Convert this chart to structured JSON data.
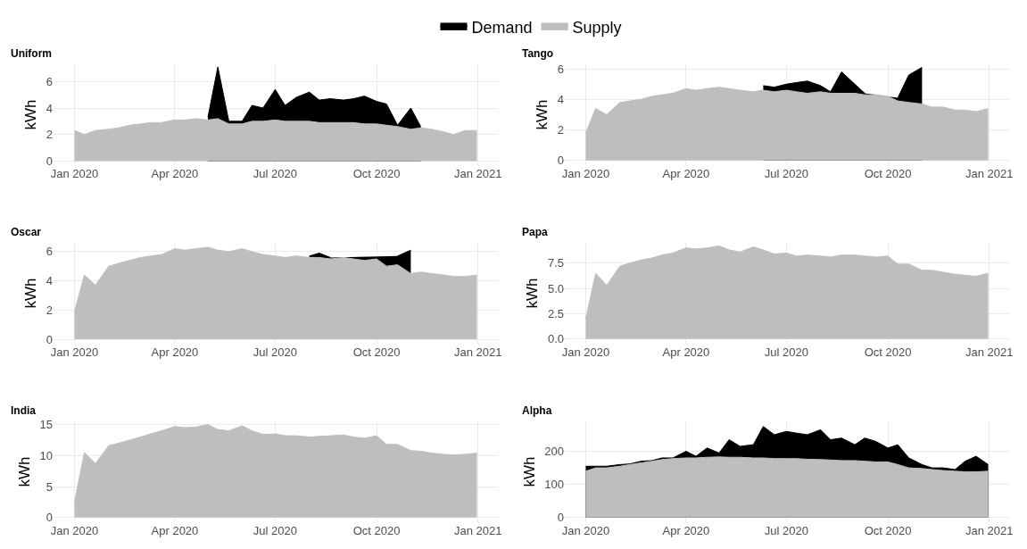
{
  "chart_data": [
    {
      "type": "area",
      "title": "Uniform",
      "ylabel": "kWh",
      "legend": "top",
      "grid": true,
      "x": [
        "2020-01-01",
        "2020-01-10",
        "2020-01-20",
        "2020-02-01",
        "2020-02-10",
        "2020-02-20",
        "2020-03-01",
        "2020-03-10",
        "2020-03-20",
        "2020-04-01",
        "2020-04-10",
        "2020-04-20",
        "2020-05-01",
        "2020-05-10",
        "2020-05-20",
        "2020-06-01",
        "2020-06-10",
        "2020-06-20",
        "2020-07-01",
        "2020-07-10",
        "2020-07-20",
        "2020-08-01",
        "2020-08-10",
        "2020-08-20",
        "2020-09-01",
        "2020-09-10",
        "2020-09-20",
        "2020-10-01",
        "2020-10-10",
        "2020-10-20",
        "2020-11-01",
        "2020-11-10",
        "2020-11-20",
        "2020-12-01",
        "2020-12-10",
        "2020-12-20",
        "2020-12-31"
      ],
      "xlim": [
        "2019-12-13",
        "2021-01-19"
      ],
      "xticks": [
        {
          "value": "2020-01-01",
          "label": "Jan 2020"
        },
        {
          "value": "2020-04-01",
          "label": "Apr 2020"
        },
        {
          "value": "2020-07-01",
          "label": "Jul 2020"
        },
        {
          "value": "2020-10-01",
          "label": "Oct 2020"
        },
        {
          "value": "2021-01-01",
          "label": "Jan 2021"
        }
      ],
      "ylim": [
        -0.3,
        7.3
      ],
      "yticks": [
        0,
        2,
        4,
        6
      ],
      "series": [
        {
          "name": "Demand",
          "color": "#000000",
          "values": [
            null,
            null,
            null,
            null,
            null,
            null,
            null,
            null,
            null,
            null,
            null,
            null,
            3.3,
            7.1,
            3.0,
            3.0,
            4.2,
            4.0,
            5.4,
            4.2,
            4.8,
            5.2,
            4.6,
            4.7,
            4.6,
            4.7,
            4.9,
            4.5,
            4.3,
            2.7,
            4.0,
            2.6,
            null,
            null,
            null,
            null,
            null
          ]
        },
        {
          "name": "Supply",
          "color": "#bebebe",
          "values": [
            2.3,
            2.0,
            2.3,
            2.4,
            2.5,
            2.7,
            2.8,
            2.9,
            2.9,
            3.1,
            3.1,
            3.2,
            3.1,
            3.2,
            2.8,
            2.8,
            3.0,
            3.0,
            3.1,
            3.0,
            3.0,
            3.0,
            2.9,
            2.9,
            2.9,
            2.9,
            2.8,
            2.8,
            2.7,
            2.6,
            2.4,
            2.5,
            2.4,
            2.2,
            2.0,
            2.3,
            2.3
          ]
        }
      ]
    },
    {
      "type": "area",
      "title": "Tango",
      "ylabel": "kWh",
      "grid": true,
      "x": [
        "2020-01-01",
        "2020-01-10",
        "2020-01-20",
        "2020-02-01",
        "2020-02-10",
        "2020-02-20",
        "2020-03-01",
        "2020-03-10",
        "2020-03-20",
        "2020-04-01",
        "2020-04-10",
        "2020-04-20",
        "2020-05-01",
        "2020-05-10",
        "2020-05-20",
        "2020-06-01",
        "2020-06-10",
        "2020-06-20",
        "2020-07-01",
        "2020-07-10",
        "2020-07-20",
        "2020-08-01",
        "2020-08-10",
        "2020-08-20",
        "2020-09-01",
        "2020-09-10",
        "2020-09-20",
        "2020-10-01",
        "2020-10-10",
        "2020-10-20",
        "2020-11-01",
        "2020-11-10",
        "2020-11-20",
        "2020-12-01",
        "2020-12-10",
        "2020-12-20",
        "2020-12-31"
      ],
      "xlim": [
        "2019-12-13",
        "2021-01-19"
      ],
      "xticks": [
        {
          "value": "2020-01-01",
          "label": "Jan 2020"
        },
        {
          "value": "2020-04-01",
          "label": "Apr 2020"
        },
        {
          "value": "2020-07-01",
          "label": "Jul 2020"
        },
        {
          "value": "2020-10-01",
          "label": "Oct 2020"
        },
        {
          "value": "2021-01-01",
          "label": "Jan 2021"
        }
      ],
      "ylim": [
        -0.3,
        6.3
      ],
      "yticks": [
        0,
        2,
        4,
        6
      ],
      "series": [
        {
          "color": "#000000",
          "values": [
            null,
            null,
            null,
            null,
            null,
            null,
            null,
            null,
            null,
            null,
            null,
            null,
            null,
            null,
            null,
            null,
            4.9,
            4.8,
            5.0,
            5.1,
            5.2,
            4.9,
            4.5,
            5.8,
            5.0,
            4.4,
            null,
            null,
            4.1,
            5.6,
            6.1,
            null,
            null,
            null,
            null,
            null,
            null
          ]
        },
        {
          "color": "#bebebe",
          "values": [
            1.8,
            3.4,
            3.0,
            3.8,
            3.9,
            4.0,
            4.2,
            4.3,
            4.4,
            4.7,
            4.6,
            4.7,
            4.8,
            4.7,
            4.6,
            4.5,
            4.6,
            4.5,
            4.6,
            4.5,
            4.4,
            4.5,
            4.4,
            4.4,
            4.4,
            4.3,
            4.3,
            4.2,
            3.9,
            3.8,
            3.7,
            3.5,
            3.5,
            3.3,
            3.3,
            3.2,
            3.4
          ]
        }
      ]
    },
    {
      "type": "area",
      "title": "Oscar",
      "ylabel": "kWh",
      "grid": true,
      "x": [
        "2020-01-01",
        "2020-01-10",
        "2020-01-20",
        "2020-02-01",
        "2020-02-10",
        "2020-02-20",
        "2020-03-01",
        "2020-03-10",
        "2020-03-20",
        "2020-04-01",
        "2020-04-10",
        "2020-04-20",
        "2020-05-01",
        "2020-05-10",
        "2020-05-20",
        "2020-06-01",
        "2020-06-10",
        "2020-06-20",
        "2020-07-01",
        "2020-07-10",
        "2020-07-20",
        "2020-08-01",
        "2020-08-10",
        "2020-08-20",
        "2020-09-01",
        "2020-09-10",
        "2020-09-20",
        "2020-10-01",
        "2020-10-10",
        "2020-10-20",
        "2020-11-01",
        "2020-11-10",
        "2020-11-20",
        "2020-12-01",
        "2020-12-10",
        "2020-12-20",
        "2020-12-31"
      ],
      "xlim": [
        "2019-12-13",
        "2021-01-19"
      ],
      "xticks": [
        {
          "value": "2020-01-01",
          "label": "Jan 2020"
        },
        {
          "value": "2020-04-01",
          "label": "Apr 2020"
        },
        {
          "value": "2020-07-01",
          "label": "Jul 2020"
        },
        {
          "value": "2020-10-01",
          "label": "Oct 2020"
        },
        {
          "value": "2021-01-01",
          "label": "Jan 2021"
        }
      ],
      "ylim": [
        -0.3,
        6.6
      ],
      "yticks": [
        0,
        2,
        4,
        6
      ],
      "series": [
        {
          "color": "#000000",
          "values": [
            null,
            null,
            null,
            null,
            null,
            null,
            null,
            null,
            null,
            null,
            null,
            null,
            null,
            null,
            null,
            null,
            null,
            null,
            null,
            null,
            null,
            5.7,
            5.9,
            5.6,
            null,
            null,
            null,
            null,
            null,
            5.7,
            6.1,
            null,
            null,
            null,
            null,
            null,
            null
          ]
        },
        {
          "color": "#bebebe",
          "values": [
            1.9,
            4.4,
            3.7,
            5.0,
            5.2,
            5.4,
            5.6,
            5.7,
            5.8,
            6.2,
            6.1,
            6.2,
            6.3,
            6.1,
            6.0,
            6.2,
            6.0,
            5.8,
            5.7,
            5.6,
            5.7,
            5.6,
            5.6,
            5.5,
            5.6,
            5.5,
            5.4,
            5.5,
            5.0,
            5.1,
            4.5,
            4.6,
            4.5,
            4.4,
            4.3,
            4.3,
            4.4
          ]
        }
      ]
    },
    {
      "type": "area",
      "title": "Papa",
      "ylabel": "kWh",
      "grid": true,
      "x": [
        "2020-01-01",
        "2020-01-10",
        "2020-01-20",
        "2020-02-01",
        "2020-02-10",
        "2020-02-20",
        "2020-03-01",
        "2020-03-10",
        "2020-03-20",
        "2020-04-01",
        "2020-04-10",
        "2020-04-20",
        "2020-05-01",
        "2020-05-10",
        "2020-05-20",
        "2020-06-01",
        "2020-06-10",
        "2020-06-20",
        "2020-07-01",
        "2020-07-10",
        "2020-07-20",
        "2020-08-01",
        "2020-08-10",
        "2020-08-20",
        "2020-09-01",
        "2020-09-10",
        "2020-09-20",
        "2020-10-01",
        "2020-10-10",
        "2020-10-20",
        "2020-11-01",
        "2020-11-10",
        "2020-11-20",
        "2020-12-01",
        "2020-12-10",
        "2020-12-20",
        "2020-12-31"
      ],
      "xlim": [
        "2019-12-13",
        "2021-01-19"
      ],
      "xticks": [
        {
          "value": "2020-01-01",
          "label": "Jan 2020"
        },
        {
          "value": "2020-04-01",
          "label": "Apr 2020"
        },
        {
          "value": "2020-07-01",
          "label": "Jul 2020"
        },
        {
          "value": "2020-10-01",
          "label": "Oct 2020"
        },
        {
          "value": "2021-01-01",
          "label": "Jan 2021"
        }
      ],
      "ylim": [
        -0.45,
        9.5
      ],
      "yticks": [
        {
          "value": 0,
          "label": "0.0"
        },
        2.5,
        {
          "value": 5,
          "label": "5.0"
        },
        7.5
      ],
      "series": [
        {
          "color": "#bebebe",
          "values": [
            2.0,
            6.5,
            5.3,
            7.2,
            7.5,
            7.8,
            8.0,
            8.3,
            8.5,
            9.0,
            8.9,
            9.0,
            9.2,
            8.8,
            8.6,
            9.1,
            8.8,
            8.4,
            8.5,
            8.2,
            8.3,
            8.2,
            8.1,
            8.3,
            8.3,
            8.2,
            8.1,
            8.2,
            7.4,
            7.4,
            6.8,
            6.8,
            6.6,
            6.4,
            6.3,
            6.2,
            6.5
          ]
        }
      ]
    },
    {
      "type": "area",
      "title": "India",
      "ylabel": "kWh",
      "grid": true,
      "x": [
        "2020-01-01",
        "2020-01-10",
        "2020-01-20",
        "2020-02-01",
        "2020-02-10",
        "2020-02-20",
        "2020-03-01",
        "2020-03-10",
        "2020-03-20",
        "2020-04-01",
        "2020-04-10",
        "2020-04-20",
        "2020-05-01",
        "2020-05-10",
        "2020-05-20",
        "2020-06-01",
        "2020-06-10",
        "2020-06-20",
        "2020-07-01",
        "2020-07-10",
        "2020-07-20",
        "2020-08-01",
        "2020-08-10",
        "2020-08-20",
        "2020-09-01",
        "2020-09-10",
        "2020-09-20",
        "2020-10-01",
        "2020-10-10",
        "2020-10-20",
        "2020-11-01",
        "2020-11-10",
        "2020-11-20",
        "2020-12-01",
        "2020-12-10",
        "2020-12-20",
        "2020-12-31"
      ],
      "xlim": [
        "2019-12-13",
        "2021-01-19"
      ],
      "xticks": [
        {
          "value": "2020-01-01",
          "label": "Jan 2020"
        },
        {
          "value": "2020-04-01",
          "label": "Apr 2020"
        },
        {
          "value": "2020-07-01",
          "label": "Jul 2020"
        },
        {
          "value": "2020-10-01",
          "label": "Oct 2020"
        },
        {
          "value": "2021-01-01",
          "label": "Jan 2021"
        }
      ],
      "ylim": [
        -0.75,
        15.5
      ],
      "yticks": [
        0,
        5,
        10,
        15
      ],
      "series": [
        {
          "color": "#bebebe",
          "values": [
            2.5,
            10.5,
            8.7,
            11.6,
            12.0,
            12.5,
            13.0,
            13.5,
            14.0,
            14.7,
            14.5,
            14.6,
            15.0,
            14.2,
            14.0,
            14.8,
            14.0,
            13.4,
            13.5,
            13.2,
            13.2,
            13.0,
            13.1,
            13.2,
            13.3,
            13.0,
            12.8,
            13.2,
            11.8,
            11.8,
            10.8,
            10.7,
            10.4,
            10.2,
            10.1,
            10.2,
            10.4
          ]
        }
      ]
    },
    {
      "type": "area",
      "title": "Alpha",
      "ylabel": "kWh",
      "grid": true,
      "x": [
        "2020-01-01",
        "2020-01-10",
        "2020-01-20",
        "2020-02-01",
        "2020-02-10",
        "2020-02-20",
        "2020-03-01",
        "2020-03-10",
        "2020-03-20",
        "2020-04-01",
        "2020-04-10",
        "2020-04-20",
        "2020-05-01",
        "2020-05-10",
        "2020-05-20",
        "2020-06-01",
        "2020-06-10",
        "2020-06-20",
        "2020-07-01",
        "2020-07-10",
        "2020-07-20",
        "2020-08-01",
        "2020-08-10",
        "2020-08-20",
        "2020-09-01",
        "2020-09-10",
        "2020-09-20",
        "2020-10-01",
        "2020-10-10",
        "2020-10-20",
        "2020-11-01",
        "2020-11-10",
        "2020-11-20",
        "2020-12-01",
        "2020-12-10",
        "2020-12-20",
        "2020-12-31"
      ],
      "xlim": [
        "2019-12-13",
        "2021-01-19"
      ],
      "xticks": [
        {
          "value": "2020-01-01",
          "label": "Jan 2020"
        },
        {
          "value": "2020-04-01",
          "label": "Apr 2020"
        },
        {
          "value": "2020-07-01",
          "label": "Jul 2020"
        },
        {
          "value": "2020-10-01",
          "label": "Oct 2020"
        },
        {
          "value": "2021-01-01",
          "label": "Jan 2021"
        }
      ],
      "ylim": [
        -14,
        290
      ],
      "yticks": [
        0,
        100,
        200
      ],
      "series": [
        {
          "color": "#000000",
          "values": [
            155,
            155,
            155,
            160,
            162,
            170,
            172,
            180,
            180,
            200,
            185,
            210,
            195,
            235,
            215,
            220,
            275,
            250,
            260,
            255,
            250,
            265,
            235,
            240,
            220,
            240,
            230,
            210,
            220,
            180,
            160,
            150,
            150,
            145,
            170,
            185,
            160
          ]
        },
        {
          "color": "#bebebe",
          "values": [
            140,
            150,
            150,
            155,
            160,
            165,
            170,
            175,
            178,
            180,
            180,
            182,
            183,
            182,
            182,
            180,
            180,
            178,
            178,
            178,
            176,
            175,
            174,
            172,
            172,
            170,
            168,
            168,
            160,
            150,
            148,
            145,
            142,
            140,
            138,
            138,
            140
          ]
        }
      ]
    }
  ]
}
